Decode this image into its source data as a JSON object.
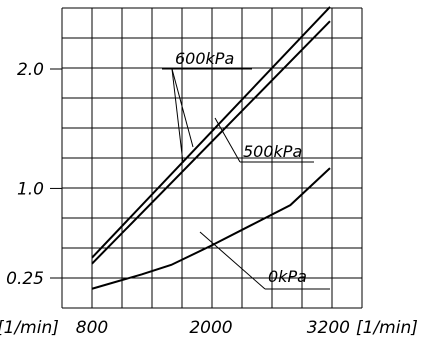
{
  "chart_data": {
    "type": "line",
    "title": "",
    "xlabel": "[1/min]",
    "xlabel_left": "[1/min]",
    "ylabel": "",
    "xlim": [
      800,
      3200
    ],
    "ylim": [
      0,
      2.3
    ],
    "x_ticks": [
      {
        "value": 800,
        "label": "800"
      },
      {
        "value": 2000,
        "label": "2000"
      },
      {
        "value": 3200,
        "label": "3200"
      }
    ],
    "y_ticks": [
      {
        "value": 0.25,
        "label": "0.25"
      },
      {
        "value": 1.0,
        "label": "1.0"
      },
      {
        "value": 2.0,
        "label": "2.0"
      }
    ],
    "grid": true,
    "series": [
      {
        "name": "600kPa",
        "x": [
          800,
          3200
        ],
        "y": [
          0.42,
          2.52
        ]
      },
      {
        "name": "500kPa",
        "x": [
          800,
          3200
        ],
        "y": [
          0.37,
          2.4
        ]
      },
      {
        "name": "0kPa",
        "x": [
          800,
          1300,
          1600,
          2000,
          2400,
          2800,
          3200
        ],
        "y": [
          0.16,
          0.28,
          0.36,
          0.52,
          0.69,
          0.86,
          1.17
        ]
      }
    ],
    "colors": {
      "line": "#000000",
      "grid": "#000000",
      "background": "#ffffff"
    }
  }
}
